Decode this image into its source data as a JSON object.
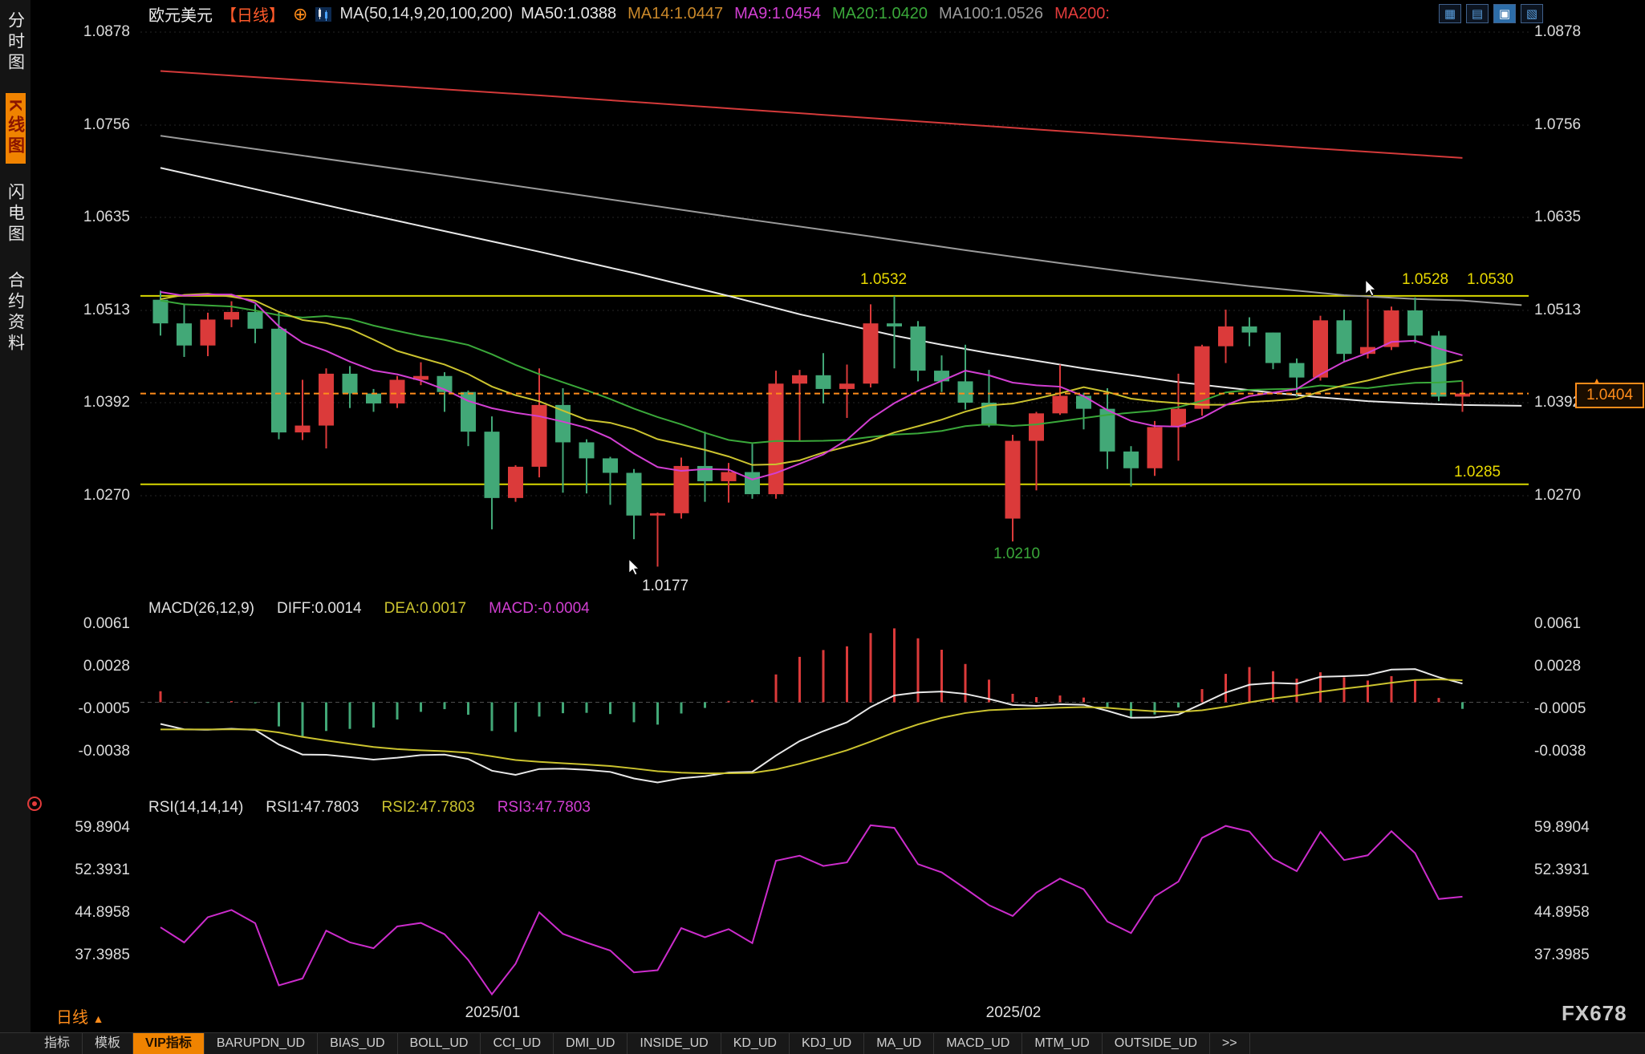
{
  "sidebar": {
    "items": [
      {
        "label": "分时图",
        "active": false
      },
      {
        "label": "K线图",
        "active": true
      },
      {
        "label": "闪电图",
        "active": false
      },
      {
        "label": "合约资料",
        "active": false
      }
    ]
  },
  "header": {
    "symbol": "欧元美元",
    "period_tag": "【日线】",
    "plus_icon": "⊕",
    "ma_title": "MA(50,14,9,20,100,200)",
    "ma_values": [
      {
        "label": "MA50:1.0388",
        "color": "#e8e8e8"
      },
      {
        "label": "MA14:1.0447",
        "color": "#c9882a"
      },
      {
        "label": "MA9:1.0454",
        "color": "#d23fd2"
      },
      {
        "label": "MA20:1.0420",
        "color": "#3aa83a"
      },
      {
        "label": "MA100:1.0526",
        "color": "#9a9a9a"
      },
      {
        "label": "MA200:",
        "color": "#e23b3b"
      }
    ]
  },
  "toolbar": {
    "icons": [
      {
        "glyph": "▦",
        "name": "layout-grid-icon",
        "active": false
      },
      {
        "glyph": "▤",
        "name": "layout-rows-icon",
        "active": false
      },
      {
        "glyph": "▣",
        "name": "layout-single-icon",
        "active": true
      },
      {
        "glyph": "▧",
        "name": "layout-window-icon",
        "active": false
      }
    ]
  },
  "price_axis": {
    "labels": [
      "1.0878",
      "1.0756",
      "1.0635",
      "1.0513",
      "1.0392",
      "1.0270"
    ]
  },
  "macd": {
    "labels": [
      {
        "text": "MACD(26,12,9)",
        "color": "#e0e0e0"
      },
      {
        "text": "DIFF:0.0014",
        "color": "#e0e0e0"
      },
      {
        "text": "DEA:0.0017",
        "color": "#cbc32f"
      },
      {
        "text": "MACD:-0.0004",
        "color": "#d23fd2"
      }
    ],
    "axis": [
      "0.0061",
      "0.0028",
      "-0.0005",
      "-0.0038"
    ]
  },
  "rsi": {
    "labels": [
      {
        "text": "RSI(14,14,14)",
        "color": "#e0e0e0"
      },
      {
        "text": "RSI1:47.7803",
        "color": "#e0e0e0"
      },
      {
        "text": "RSI2:47.7803",
        "color": "#cbc32f"
      },
      {
        "text": "RSI3:47.7803",
        "color": "#d23fd2"
      }
    ],
    "axis": [
      "59.8904",
      "52.3931",
      "44.8958",
      "37.3985"
    ]
  },
  "annotations": {
    "res_mid": {
      "text": "1.0532"
    },
    "res_r1": {
      "text": "1.0528"
    },
    "res_r2": {
      "text": "1.0530"
    },
    "support": {
      "text": "1.0285"
    },
    "low_feb": {
      "text": "1.0210"
    },
    "low_jan": {
      "text": "1.0177"
    },
    "last": {
      "text": "1.0404"
    }
  },
  "footer": {
    "period": "日线",
    "period_arrow": "▲",
    "watermark": "FX678",
    "tabs": [
      {
        "label": "指标",
        "active": false
      },
      {
        "label": "模板",
        "active": false
      },
      {
        "label": "VIP指标",
        "active": true
      },
      {
        "label": "BARUPDN_UD",
        "active": false
      },
      {
        "label": "BIAS_UD",
        "active": false
      },
      {
        "label": "BOLL_UD",
        "active": false
      },
      {
        "label": "CCI_UD",
        "active": false
      },
      {
        "label": "DMI_UD",
        "active": false
      },
      {
        "label": "INSIDE_UD",
        "active": false
      },
      {
        "label": "KD_UD",
        "active": false
      },
      {
        "label": "KDJ_UD",
        "active": false
      },
      {
        "label": "MA_UD",
        "active": false
      },
      {
        "label": "MACD_UD",
        "active": false
      },
      {
        "label": "MTM_UD",
        "active": false
      },
      {
        "label": "OUTSIDE_UD",
        "active": false
      },
      {
        "label": ">>",
        "active": false
      }
    ]
  },
  "chart_data": {
    "type": "candlestick",
    "title": "欧元美元 EUR/USD 日线",
    "x_labels": [
      "2025/01",
      "2025/02"
    ],
    "price_axis_range": [
      1.027,
      1.0878
    ],
    "colors": {
      "up": "#db3a3a",
      "down": "#42a877",
      "ma9": "#d23fd2",
      "ma14": "#cbc32f",
      "ma20": "#3aa83a",
      "ma50": "#e8e8e8",
      "ma100": "#9a9a9a",
      "ma200": "#d43a3a",
      "level": "#d8d800",
      "accent": "#ff8c1a",
      "diff": "#e8e8e8",
      "dea": "#cbc32f",
      "rsi": "#cc2ccc"
    },
    "levels": {
      "resistance": 1.0532,
      "support": 1.0285,
      "last_price": 1.0404,
      "swing_low_jan": 1.0177,
      "swing_low_feb": 1.021,
      "recent_highs": [
        1.0528,
        1.053
      ]
    },
    "pre_closes": [
      1.068,
      1.0672,
      1.0664,
      1.0656,
      1.0648,
      1.064,
      1.0632,
      1.0624,
      1.0616,
      1.0608,
      1.06,
      1.0592,
      1.0584,
      1.0577,
      1.057,
      1.0565,
      1.053,
      1.054,
      1.0594,
      1.0478,
      1.0423,
      1.0389,
      1.048,
      1.0565,
      1.0562,
      1.0558,
      1.0512,
      1.0486,
      1.0511,
      1.0588,
      1.063,
      1.0554,
      1.0528,
      1.053
    ],
    "candles": [
      {
        "d": "2024-12-11",
        "o": 1.0527,
        "h": 1.0539,
        "l": 1.048,
        "c": 1.0496
      },
      {
        "d": "2024-12-12",
        "o": 1.0496,
        "h": 1.0522,
        "l": 1.0452,
        "c": 1.0467
      },
      {
        "d": "2024-12-13",
        "o": 1.0467,
        "h": 1.051,
        "l": 1.0453,
        "c": 1.0501
      },
      {
        "d": "2024-12-16",
        "o": 1.0501,
        "h": 1.0525,
        "l": 1.0491,
        "c": 1.0511
      },
      {
        "d": "2024-12-17",
        "o": 1.0511,
        "h": 1.0521,
        "l": 1.047,
        "c": 1.0489
      },
      {
        "d": "2024-12-18",
        "o": 1.0489,
        "h": 1.0512,
        "l": 1.0344,
        "c": 1.0353
      },
      {
        "d": "2024-12-19",
        "o": 1.0353,
        "h": 1.0422,
        "l": 1.0343,
        "c": 1.0362
      },
      {
        "d": "2024-12-20",
        "o": 1.0362,
        "h": 1.0437,
        "l": 1.0332,
        "c": 1.043
      },
      {
        "d": "2024-12-23",
        "o": 1.043,
        "h": 1.044,
        "l": 1.0385,
        "c": 1.0404
      },
      {
        "d": "2024-12-24",
        "o": 1.0404,
        "h": 1.041,
        "l": 1.038,
        "c": 1.0391
      },
      {
        "d": "2024-12-26",
        "o": 1.0391,
        "h": 1.0427,
        "l": 1.0385,
        "c": 1.0422
      },
      {
        "d": "2024-12-27",
        "o": 1.0422,
        "h": 1.0445,
        "l": 1.0415,
        "c": 1.0427
      },
      {
        "d": "2024-12-30",
        "o": 1.0427,
        "h": 1.0432,
        "l": 1.038,
        "c": 1.0406
      },
      {
        "d": "2024-12-31",
        "o": 1.0406,
        "h": 1.0408,
        "l": 1.0335,
        "c": 1.0354
      },
      {
        "d": "2025-01-02",
        "o": 1.0354,
        "h": 1.0374,
        "l": 1.0226,
        "c": 1.0267
      },
      {
        "d": "2025-01-03",
        "o": 1.0267,
        "h": 1.031,
        "l": 1.0262,
        "c": 1.0308
      },
      {
        "d": "2025-01-06",
        "o": 1.0308,
        "h": 1.0437,
        "l": 1.0294,
        "c": 1.0389
      },
      {
        "d": "2025-01-07",
        "o": 1.0389,
        "h": 1.0411,
        "l": 1.0274,
        "c": 1.034
      },
      {
        "d": "2025-01-08",
        "o": 1.034,
        "h": 1.0344,
        "l": 1.0273,
        "c": 1.0319
      },
      {
        "d": "2025-01-09",
        "o": 1.0319,
        "h": 1.0321,
        "l": 1.0258,
        "c": 1.03
      },
      {
        "d": "2025-01-10",
        "o": 1.03,
        "h": 1.0305,
        "l": 1.0213,
        "c": 1.0244
      },
      {
        "d": "2025-01-13",
        "o": 1.0244,
        "h": 1.0248,
        "l": 1.0177,
        "c": 1.0247
      },
      {
        "d": "2025-01-14",
        "o": 1.0247,
        "h": 1.032,
        "l": 1.024,
        "c": 1.0309
      },
      {
        "d": "2025-01-15",
        "o": 1.0309,
        "h": 1.0354,
        "l": 1.0262,
        "c": 1.0289
      },
      {
        "d": "2025-01-16",
        "o": 1.0289,
        "h": 1.0313,
        "l": 1.0261,
        "c": 1.0301
      },
      {
        "d": "2025-01-17",
        "o": 1.0301,
        "h": 1.0338,
        "l": 1.0266,
        "c": 1.0272
      },
      {
        "d": "2025-01-20",
        "o": 1.0272,
        "h": 1.0434,
        "l": 1.0266,
        "c": 1.0417
      },
      {
        "d": "2025-01-21",
        "o": 1.0417,
        "h": 1.0435,
        "l": 1.0341,
        "c": 1.0428
      },
      {
        "d": "2025-01-22",
        "o": 1.0428,
        "h": 1.0457,
        "l": 1.0391,
        "c": 1.041
      },
      {
        "d": "2025-01-23",
        "o": 1.041,
        "h": 1.0442,
        "l": 1.0372,
        "c": 1.0417
      },
      {
        "d": "2025-01-24",
        "o": 1.0417,
        "h": 1.0521,
        "l": 1.0412,
        "c": 1.0496
      },
      {
        "d": "2025-01-27",
        "o": 1.0496,
        "h": 1.0532,
        "l": 1.0437,
        "c": 1.0492
      },
      {
        "d": "2025-01-28",
        "o": 1.0492,
        "h": 1.0499,
        "l": 1.042,
        "c": 1.0434
      },
      {
        "d": "2025-01-29",
        "o": 1.0434,
        "h": 1.0454,
        "l": 1.0406,
        "c": 1.042
      },
      {
        "d": "2025-01-30",
        "o": 1.042,
        "h": 1.0468,
        "l": 1.0383,
        "c": 1.0392
      },
      {
        "d": "2025-01-31",
        "o": 1.0392,
        "h": 1.0435,
        "l": 1.036,
        "c": 1.0362
      },
      {
        "d": "2025-02-03",
        "o": 1.024,
        "h": 1.035,
        "l": 1.021,
        "c": 1.0342
      },
      {
        "d": "2025-02-04",
        "o": 1.0342,
        "h": 1.038,
        "l": 1.0277,
        "c": 1.0378
      },
      {
        "d": "2025-02-05",
        "o": 1.0378,
        "h": 1.0442,
        "l": 1.0376,
        "c": 1.0401
      },
      {
        "d": "2025-02-06",
        "o": 1.0401,
        "h": 1.0405,
        "l": 1.0357,
        "c": 1.0384
      },
      {
        "d": "2025-02-07",
        "o": 1.0384,
        "h": 1.0411,
        "l": 1.0305,
        "c": 1.0328
      },
      {
        "d": "2025-02-10",
        "o": 1.0328,
        "h": 1.0335,
        "l": 1.0282,
        "c": 1.0306
      },
      {
        "d": "2025-02-11",
        "o": 1.0306,
        "h": 1.0368,
        "l": 1.0296,
        "c": 1.036
      },
      {
        "d": "2025-02-12",
        "o": 1.036,
        "h": 1.043,
        "l": 1.0316,
        "c": 1.0384
      },
      {
        "d": "2025-02-13",
        "o": 1.0384,
        "h": 1.0468,
        "l": 1.0375,
        "c": 1.0466
      },
      {
        "d": "2025-02-14",
        "o": 1.0466,
        "h": 1.0514,
        "l": 1.0444,
        "c": 1.0492
      },
      {
        "d": "2025-02-17",
        "o": 1.0492,
        "h": 1.0504,
        "l": 1.0466,
        "c": 1.0484
      },
      {
        "d": "2025-02-18",
        "o": 1.0484,
        "h": 1.0484,
        "l": 1.0436,
        "c": 1.0444
      },
      {
        "d": "2025-02-19",
        "o": 1.0444,
        "h": 1.045,
        "l": 1.04,
        "c": 1.0425
      },
      {
        "d": "2025-02-20",
        "o": 1.0425,
        "h": 1.0506,
        "l": 1.0421,
        "c": 1.05
      },
      {
        "d": "2025-02-21",
        "o": 1.05,
        "h": 1.0514,
        "l": 1.0445,
        "c": 1.0456
      },
      {
        "d": "2025-02-24",
        "o": 1.0456,
        "h": 1.0528,
        "l": 1.045,
        "c": 1.0465
      },
      {
        "d": "2025-02-25",
        "o": 1.0465,
        "h": 1.0518,
        "l": 1.0461,
        "c": 1.0513
      },
      {
        "d": "2025-02-26",
        "o": 1.0513,
        "h": 1.053,
        "l": 1.047,
        "c": 1.048
      },
      {
        "d": "2025-02-27",
        "o": 1.048,
        "h": 1.0486,
        "l": 1.0394,
        "c": 1.04
      },
      {
        "d": "2025-02-28",
        "o": 1.04,
        "h": 1.042,
        "l": 1.038,
        "c": 1.0404
      }
    ],
    "overlay_ma": {
      "ma50": [
        [
          0,
          1.07
        ],
        [
          4,
          1.0672
        ],
        [
          8,
          1.0644
        ],
        [
          12,
          1.0617
        ],
        [
          16,
          1.059
        ],
        [
          20,
          1.0562
        ],
        [
          24,
          1.0532
        ],
        [
          27,
          1.0508
        ],
        [
          29,
          1.0494
        ],
        [
          31,
          1.048
        ],
        [
          33,
          1.0468
        ],
        [
          35,
          1.0457
        ],
        [
          37,
          1.0447
        ],
        [
          39,
          1.0437
        ],
        [
          41,
          1.0428
        ],
        [
          43,
          1.0419
        ],
        [
          45,
          1.0412
        ],
        [
          47,
          1.0405
        ],
        [
          49,
          1.0399
        ],
        [
          51,
          1.0394
        ],
        [
          53,
          1.0391
        ],
        [
          55,
          1.0389
        ],
        [
          57.5,
          1.0388
        ]
      ],
      "ma100": [
        [
          0,
          1.0742
        ],
        [
          6,
          1.0716
        ],
        [
          12,
          1.069
        ],
        [
          18,
          1.0663
        ],
        [
          24,
          1.0636
        ],
        [
          30,
          1.061
        ],
        [
          34,
          1.0592
        ],
        [
          38,
          1.0575
        ],
        [
          42,
          1.0559
        ],
        [
          46,
          1.0545
        ],
        [
          50,
          1.0533
        ],
        [
          53,
          1.0528
        ],
        [
          55,
          1.0526
        ],
        [
          57.5,
          1.052
        ]
      ],
      "ma200": [
        [
          0,
          1.0827
        ],
        [
          8,
          1.0811
        ],
        [
          16,
          1.0795
        ],
        [
          24,
          1.0778
        ],
        [
          32,
          1.0761
        ],
        [
          40,
          1.0744
        ],
        [
          48,
          1.0727
        ],
        [
          55,
          1.0713
        ]
      ]
    },
    "sub_indicators": {
      "macd": {
        "params": "26,12,9",
        "diff": 0.0014,
        "dea": 0.0017,
        "macd": -0.0004,
        "axis": [
          0.0061,
          0.0028,
          -0.0005,
          -0.0038
        ]
      },
      "rsi": {
        "params": "14,14,14",
        "rsi1": 47.7803,
        "rsi2": 47.7803,
        "rsi3": 47.7803,
        "axis": [
          59.8904,
          52.3931,
          44.8958,
          37.3985
        ]
      }
    }
  }
}
